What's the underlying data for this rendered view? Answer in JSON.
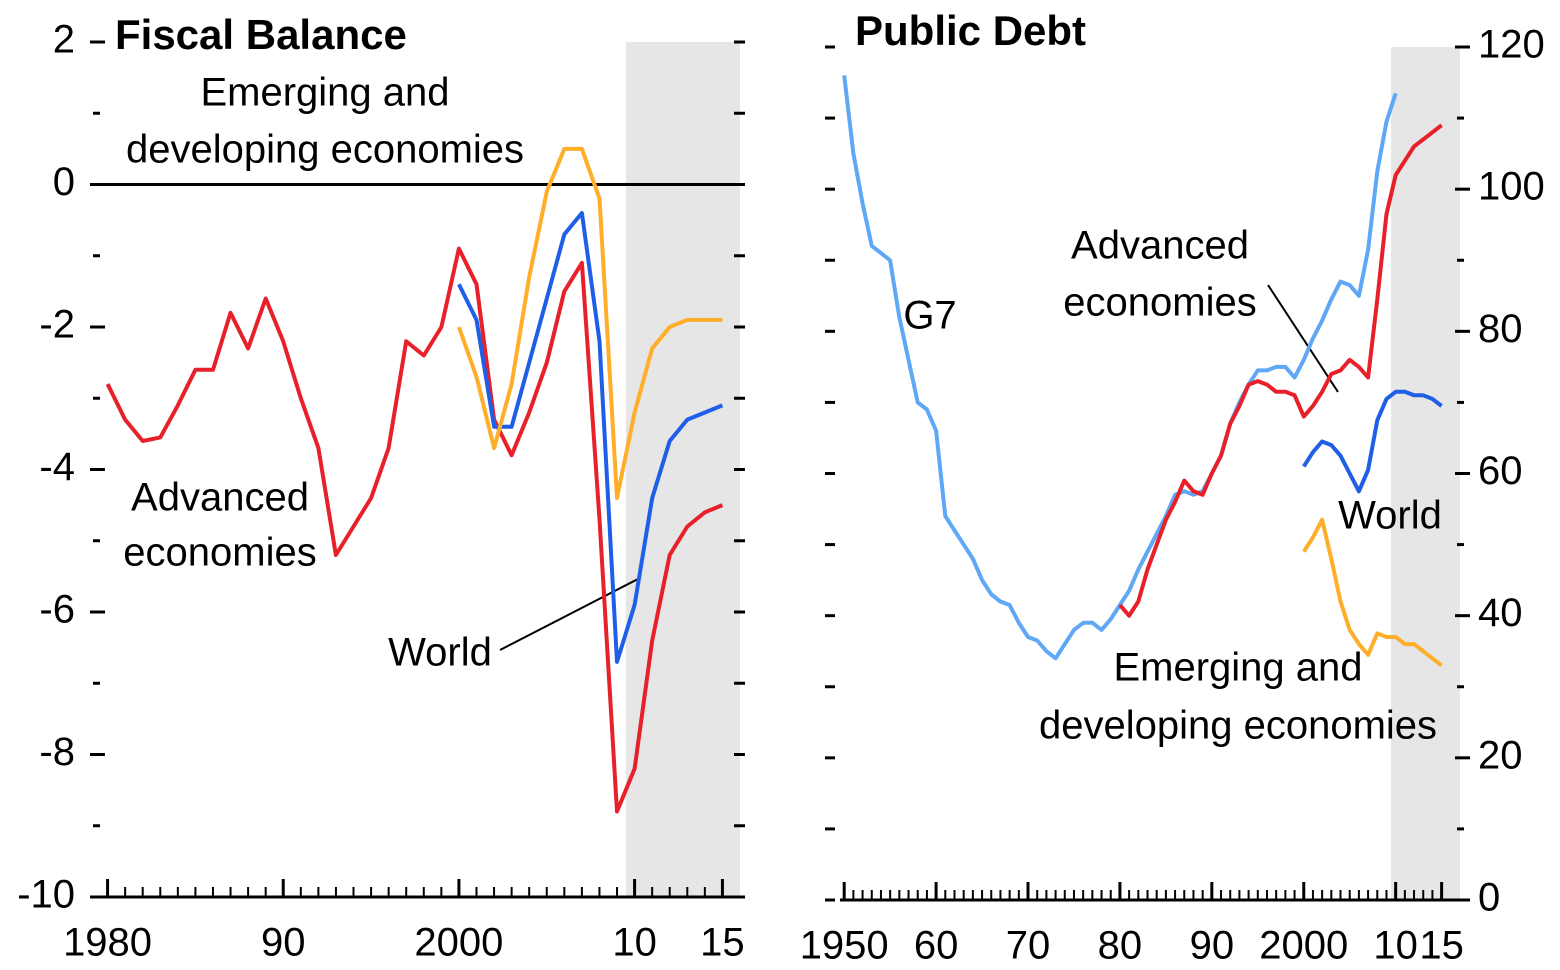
{
  "chart_data": [
    {
      "type": "line",
      "title": "Fiscal Balance",
      "yaxis_side": "left",
      "zero_line": true,
      "shade": [
        2009.5,
        2016
      ],
      "x": [
        1980,
        1981,
        1982,
        1983,
        1984,
        1985,
        1986,
        1987,
        1988,
        1989,
        1990,
        1991,
        1992,
        1993,
        1994,
        1995,
        1996,
        1997,
        1998,
        1999,
        2000,
        2001,
        2002,
        2003,
        2004,
        2005,
        2006,
        2007,
        2008,
        2009,
        2010,
        2011,
        2012,
        2013,
        2014,
        2015
      ],
      "xlim": [
        1979,
        2016
      ],
      "xticks": [
        1980,
        {
          "value": 1990,
          "label": "90"
        },
        2000,
        {
          "value": 2010,
          "label": "10"
        },
        {
          "value": 2015,
          "label": "15"
        }
      ],
      "ylim": [
        -10,
        2
      ],
      "yticks": [
        -10,
        -8,
        -6,
        -4,
        -2,
        0,
        2
      ],
      "series": [
        {
          "label_lines": [
            "Advanced",
            "economies"
          ],
          "color": "#e8202a",
          "values": [
            -2.8,
            -3.3,
            -3.6,
            -3.55,
            -3.1,
            -2.6,
            -2.6,
            -1.8,
            -2.3,
            -1.6,
            -2.2,
            -3.0,
            -3.7,
            -5.2,
            -4.8,
            -4.4,
            -3.7,
            -2.2,
            -2.4,
            -2.0,
            -0.9,
            -1.4,
            -3.3,
            -3.8,
            -3.2,
            -2.5,
            -1.5,
            -1.1,
            -4.7,
            -8.8,
            -8.2,
            -6.4,
            -5.2,
            -4.8,
            -4.6,
            -4.5
          ]
        },
        {
          "label_lines": [
            "World"
          ],
          "color": "#1f5fe8",
          "values": [
            null,
            null,
            null,
            null,
            null,
            null,
            null,
            null,
            null,
            null,
            null,
            null,
            null,
            null,
            null,
            null,
            null,
            null,
            null,
            null,
            -1.4,
            -1.9,
            -3.4,
            -3.4,
            -2.5,
            -1.6,
            -0.7,
            -0.4,
            -2.2,
            -6.7,
            -5.9,
            -4.4,
            -3.6,
            -3.3,
            -3.2,
            -3.1
          ]
        },
        {
          "label_lines": [
            "Emerging and",
            "developing economies"
          ],
          "color": "#ffae2a",
          "values": [
            null,
            null,
            null,
            null,
            null,
            null,
            null,
            null,
            null,
            null,
            null,
            null,
            null,
            null,
            null,
            null,
            null,
            null,
            null,
            null,
            -2.0,
            -2.7,
            -3.7,
            -2.8,
            -1.3,
            -0.1,
            0.5,
            0.5,
            -0.2,
            -4.4,
            -3.2,
            -2.3,
            -2.0,
            -1.9,
            -1.9,
            -1.9
          ]
        }
      ]
    },
    {
      "type": "line",
      "title": "Public Debt",
      "yaxis_side": "right",
      "zero_line": false,
      "shade": [
        2009.5,
        2017
      ],
      "x": [
        1950,
        1951,
        1952,
        1953,
        1954,
        1955,
        1956,
        1957,
        1958,
        1959,
        1960,
        1961,
        1962,
        1963,
        1964,
        1965,
        1966,
        1967,
        1968,
        1969,
        1970,
        1971,
        1972,
        1973,
        1974,
        1975,
        1976,
        1977,
        1978,
        1979,
        1980,
        1981,
        1982,
        1983,
        1984,
        1985,
        1986,
        1987,
        1988,
        1989,
        1990,
        1991,
        1992,
        1993,
        1994,
        1995,
        1996,
        1997,
        1998,
        1999,
        2000,
        2001,
        2002,
        2003,
        2004,
        2005,
        2006,
        2007,
        2008,
        2009,
        2010,
        2011,
        2012,
        2013,
        2014,
        2015
      ],
      "xlim": [
        1949,
        2017
      ],
      "xticks": [
        1950,
        {
          "value": 1960,
          "label": "60"
        },
        {
          "value": 1970,
          "label": "70"
        },
        {
          "value": 1980,
          "label": "80"
        },
        {
          "value": 1990,
          "label": "90"
        },
        2000,
        {
          "value": 2010,
          "label": "10"
        },
        {
          "value": 2015,
          "label": "15"
        }
      ],
      "ylim": [
        0,
        120
      ],
      "yticks": [
        0,
        20,
        40,
        60,
        80,
        100,
        120
      ],
      "series": [
        {
          "label_lines": [
            "G7"
          ],
          "color": "#5fa8f5",
          "values": [
            116,
            105,
            98,
            92,
            91,
            90,
            82,
            76,
            70,
            69,
            66,
            54,
            52,
            50,
            48,
            45,
            43,
            42,
            41.5,
            39,
            37,
            36.5,
            35,
            34,
            36,
            38,
            39,
            39,
            38,
            39.5,
            41.5,
            43.5,
            46.5,
            49,
            51.5,
            54,
            57,
            57.5,
            57,
            57.5,
            60,
            62.5,
            67,
            70,
            72.5,
            74.5,
            74.5,
            75,
            75,
            73.5,
            76,
            79,
            81.5,
            84.5,
            87,
            86.5,
            85,
            91.5,
            102.5,
            109.5,
            113.5,
            null,
            null,
            null,
            null,
            null
          ]
        },
        {
          "label_lines": [
            "Advanced",
            "economies"
          ],
          "color": "#e8202a",
          "values": [
            null,
            null,
            null,
            null,
            null,
            null,
            null,
            null,
            null,
            null,
            null,
            null,
            null,
            null,
            null,
            null,
            null,
            null,
            null,
            null,
            null,
            null,
            null,
            null,
            null,
            null,
            null,
            null,
            null,
            null,
            41.5,
            40,
            42,
            46.5,
            50,
            53.5,
            56,
            59,
            57.5,
            57,
            60,
            62.5,
            67,
            69.5,
            72.5,
            73,
            72.5,
            71.5,
            71.5,
            71,
            68,
            69.5,
            71.5,
            74,
            74.5,
            76,
            75,
            73.5,
            84.5,
            96.5,
            102,
            104,
            106,
            107,
            108,
            109
          ]
        },
        {
          "label_lines": [
            "World"
          ],
          "color": "#1f5fe8",
          "values": [
            null,
            null,
            null,
            null,
            null,
            null,
            null,
            null,
            null,
            null,
            null,
            null,
            null,
            null,
            null,
            null,
            null,
            null,
            null,
            null,
            null,
            null,
            null,
            null,
            null,
            null,
            null,
            null,
            null,
            null,
            null,
            null,
            null,
            null,
            null,
            null,
            null,
            null,
            null,
            null,
            null,
            null,
            null,
            null,
            null,
            null,
            null,
            null,
            null,
            null,
            61,
            63,
            64.5,
            64,
            62.5,
            60,
            57.5,
            60.5,
            67.5,
            70.5,
            71.5,
            71.5,
            71,
            71,
            70.5,
            69.5
          ]
        },
        {
          "label_lines": [
            "Emerging and",
            "developing economies"
          ],
          "color": "#ffae2a",
          "values": [
            null,
            null,
            null,
            null,
            null,
            null,
            null,
            null,
            null,
            null,
            null,
            null,
            null,
            null,
            null,
            null,
            null,
            null,
            null,
            null,
            null,
            null,
            null,
            null,
            null,
            null,
            null,
            null,
            null,
            null,
            null,
            null,
            null,
            null,
            null,
            null,
            null,
            null,
            null,
            null,
            null,
            null,
            null,
            null,
            null,
            null,
            null,
            null,
            null,
            null,
            49,
            51,
            53.5,
            48,
            42,
            38,
            36,
            34.5,
            37.5,
            37,
            37,
            36,
            36,
            35,
            34,
            33
          ]
        }
      ]
    }
  ]
}
